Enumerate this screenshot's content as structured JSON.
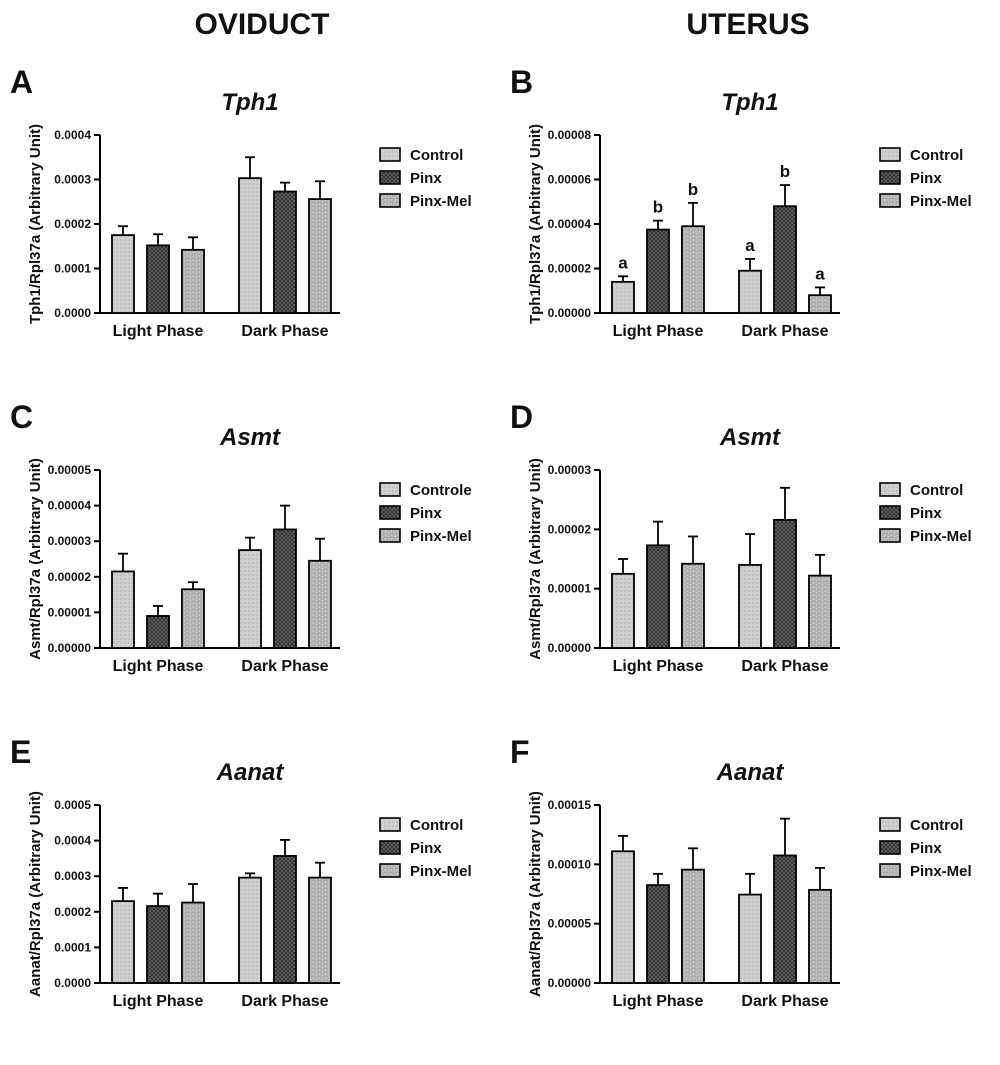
{
  "headers": {
    "left": "OVIDUCT",
    "right": "UTERUS"
  },
  "colors": {
    "control_fill": "#cfcfcf",
    "pinx_fill": "#2e2e2e",
    "pinxmel_fill": "#a8a8a8",
    "stroke": "#000000"
  },
  "chart_data": [
    {
      "panel": "A",
      "title": "Tph1",
      "type": "bar",
      "ylabel": "Tph1/Rpl37a (Arbitrary Unit)",
      "categories": [
        "Light Phase",
        "Dark Phase"
      ],
      "ylim": [
        0,
        0.0004
      ],
      "yticks": [
        "0.0000",
        "0.0001",
        "0.0002",
        "0.0003",
        "0.0004"
      ],
      "series": [
        {
          "name": "Control",
          "values": [
            0.000175,
            0.000303
          ],
          "errors": [
            2e-05,
            4.7e-05
          ],
          "letters": [
            "",
            ""
          ]
        },
        {
          "name": "Pinx",
          "values": [
            0.000152,
            0.000273
          ],
          "errors": [
            2.5e-05,
            2e-05
          ],
          "letters": [
            "",
            ""
          ]
        },
        {
          "name": "Pinx-Mel",
          "values": [
            0.000142,
            0.000256
          ],
          "errors": [
            2.8e-05,
            4e-05
          ],
          "letters": [
            "",
            ""
          ]
        }
      ]
    },
    {
      "panel": "B",
      "title": "Tph1",
      "type": "bar",
      "ylabel": "Tph1/Rpl37a (Arbitrary Unit)",
      "categories": [
        "Light Phase",
        "Dark Phase"
      ],
      "ylim": [
        0,
        8e-05
      ],
      "yticks": [
        "0.00000",
        "0.00002",
        "0.00004",
        "0.00006",
        "0.00008"
      ],
      "series": [
        {
          "name": "Control",
          "values": [
            1.4e-05,
            1.9e-05
          ],
          "errors": [
            2.5e-06,
            5.3e-06
          ],
          "letters": [
            "a",
            "a"
          ]
        },
        {
          "name": "Pinx",
          "values": [
            3.75e-05,
            4.8e-05
          ],
          "errors": [
            4e-06,
            9.5e-06
          ],
          "letters": [
            "b",
            "b"
          ]
        },
        {
          "name": "Pinx-Mel",
          "values": [
            3.9e-05,
            8e-06
          ],
          "errors": [
            1.05e-05,
            3.5e-06
          ],
          "letters": [
            "b",
            "a"
          ]
        }
      ]
    },
    {
      "panel": "C",
      "title": "Asmt",
      "type": "bar",
      "ylabel": "Asmt/Rpl37a (Arbitrary Unit)",
      "categories": [
        "Light Phase",
        "Dark Phase"
      ],
      "ylim": [
        0,
        5e-05
      ],
      "yticks": [
        "0.00000",
        "0.00001",
        "0.00002",
        "0.00003",
        "0.00004",
        "0.00005"
      ],
      "series": [
        {
          "name": "Controle",
          "values": [
            2.15e-05,
            2.75e-05
          ],
          "errors": [
            5e-06,
            3.5e-06
          ],
          "letters": [
            "",
            ""
          ]
        },
        {
          "name": "Pinx",
          "values": [
            9e-06,
            3.33e-05
          ],
          "errors": [
            2.8e-06,
            6.7e-06
          ],
          "letters": [
            "",
            ""
          ]
        },
        {
          "name": "Pinx-Mel",
          "values": [
            1.65e-05,
            2.45e-05
          ],
          "errors": [
            2e-06,
            6.2e-06
          ],
          "letters": [
            "",
            ""
          ]
        }
      ]
    },
    {
      "panel": "D",
      "title": "Asmt",
      "type": "bar",
      "ylabel": "Asmt/Rpl37a (Arbitrary Unit)",
      "categories": [
        "Light Phase",
        "Dark Phase"
      ],
      "ylim": [
        0,
        3e-05
      ],
      "yticks": [
        "0.00000",
        "0.00001",
        "0.00002",
        "0.00003"
      ],
      "series": [
        {
          "name": "Control",
          "values": [
            1.25e-05,
            1.4e-05
          ],
          "errors": [
            2.5e-06,
            5.2e-06
          ],
          "letters": [
            "",
            ""
          ]
        },
        {
          "name": "Pinx",
          "values": [
            1.73e-05,
            2.16e-05
          ],
          "errors": [
            4e-06,
            5.4e-06
          ],
          "letters": [
            "",
            ""
          ]
        },
        {
          "name": "Pinx-Mel",
          "values": [
            1.42e-05,
            1.22e-05
          ],
          "errors": [
            4.6e-06,
            3.5e-06
          ],
          "letters": [
            "",
            ""
          ]
        }
      ]
    },
    {
      "panel": "E",
      "title": "Aanat",
      "type": "bar",
      "ylabel": "Aanat/Rpl37a (Arbitrary Unit)",
      "categories": [
        "Light Phase",
        "Dark Phase"
      ],
      "ylim": [
        0,
        0.0005
      ],
      "yticks": [
        "0.0000",
        "0.0001",
        "0.0002",
        "0.0003",
        "0.0004",
        "0.0005"
      ],
      "series": [
        {
          "name": "Control",
          "values": [
            0.00023,
            0.000296
          ],
          "errors": [
            3.7e-05,
            1.2e-05
          ],
          "letters": [
            "",
            ""
          ]
        },
        {
          "name": "Pinx",
          "values": [
            0.000216,
            0.000357
          ],
          "errors": [
            3.5e-05,
            4.5e-05
          ],
          "letters": [
            "",
            ""
          ]
        },
        {
          "name": "Pinx-Mel",
          "values": [
            0.000226,
            0.000296
          ],
          "errors": [
            5.2e-05,
            4.2e-05
          ],
          "letters": [
            "",
            ""
          ]
        }
      ]
    },
    {
      "panel": "F",
      "title": "Aanat",
      "type": "bar",
      "ylabel": "Aanat/Rpl37a (Arbitrary Unit)",
      "categories": [
        "Light Phase",
        "Dark Phase"
      ],
      "ylim": [
        0,
        0.00015
      ],
      "yticks": [
        "0.00000",
        "0.00005",
        "0.00010",
        "0.00015"
      ],
      "series": [
        {
          "name": "Control",
          "values": [
            0.000111,
            7.45e-05
          ],
          "errors": [
            1.3e-05,
            1.75e-05
          ],
          "letters": [
            "",
            ""
          ]
        },
        {
          "name": "Pinx",
          "values": [
            8.25e-05,
            0.0001075
          ],
          "errors": [
            9.5e-06,
            3.1e-05
          ],
          "letters": [
            "",
            ""
          ]
        },
        {
          "name": "Pinx-Mel",
          "values": [
            9.55e-05,
            7.85e-05
          ],
          "errors": [
            1.8e-05,
            1.85e-05
          ],
          "letters": [
            "",
            ""
          ]
        }
      ]
    }
  ]
}
